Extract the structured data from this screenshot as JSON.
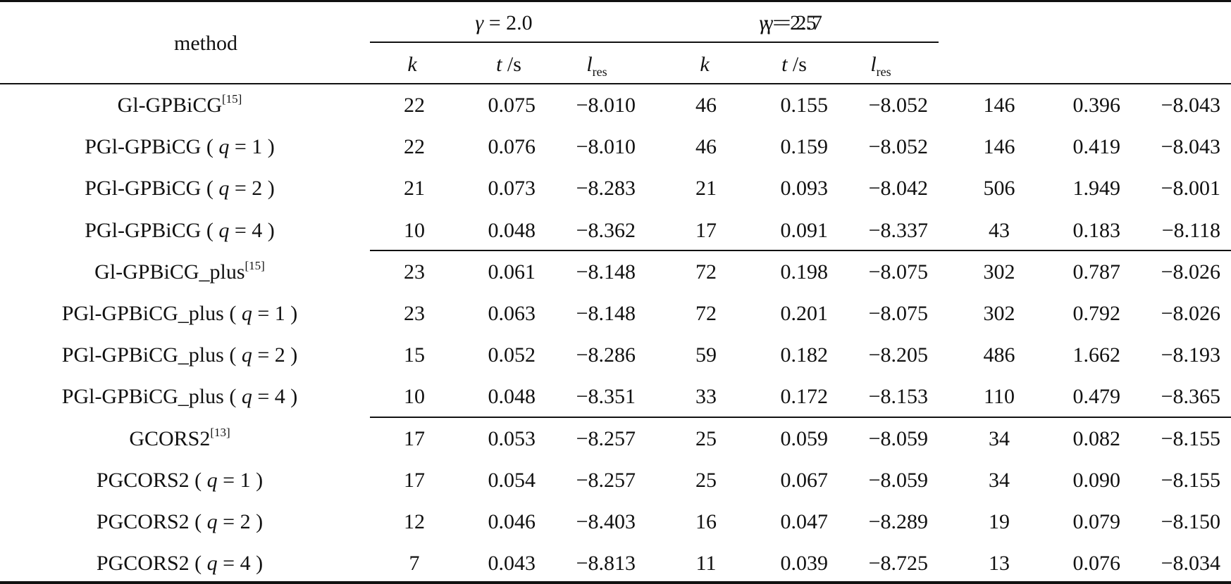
{
  "header": {
    "method_label": "method",
    "group1": {
      "label_greek": "γ",
      "label_eq": " = 2.0"
    },
    "group2": {
      "label_greek": "γ",
      "label_eq": " = 2.5",
      "overlay": "γ = 2.7"
    },
    "col_k": "k",
    "col_t": "t",
    "col_t_unit": " /s",
    "col_l": "l",
    "col_l_sub": "res"
  },
  "rows": [
    {
      "method": "Gl-GPBiCG",
      "ref": "[15]",
      "param": "",
      "g1": [
        "22",
        "0.075",
        "−8.010"
      ],
      "g2": [
        "46",
        "0.155",
        "−8.052"
      ],
      "g3": [
        "146",
        "0.396",
        "−8.043"
      ]
    },
    {
      "method": "PGl-GPBiCG",
      "ref": "",
      "param": "1",
      "g1": [
        "22",
        "0.076",
        "−8.010"
      ],
      "g2": [
        "46",
        "0.159",
        "−8.052"
      ],
      "g3": [
        "146",
        "0.419",
        "−8.043"
      ]
    },
    {
      "method": "PGl-GPBiCG",
      "ref": "",
      "param": "2",
      "g1": [
        "21",
        "0.073",
        "−8.283"
      ],
      "g2": [
        "21",
        "0.093",
        "−8.042"
      ],
      "g3": [
        "506",
        "1.949",
        "−8.001"
      ]
    },
    {
      "method": "PGl-GPBiCG",
      "ref": "",
      "param": "4",
      "g1": [
        "10",
        "0.048",
        "−8.362"
      ],
      "g2": [
        "17",
        "0.091",
        "−8.337"
      ],
      "g3": [
        "43",
        "0.183",
        "−8.118"
      ]
    },
    {
      "method": "Gl-GPBiCG_plus",
      "ref": "[15]",
      "param": "",
      "g1": [
        "23",
        "0.061",
        "−8.148"
      ],
      "g2": [
        "72",
        "0.198",
        "−8.075"
      ],
      "g3": [
        "302",
        "0.787",
        "−8.026"
      ]
    },
    {
      "method": "PGl-GPBiCG_plus",
      "ref": "",
      "param": "1",
      "g1": [
        "23",
        "0.063",
        "−8.148"
      ],
      "g2": [
        "72",
        "0.201",
        "−8.075"
      ],
      "g3": [
        "302",
        "0.792",
        "−8.026"
      ]
    },
    {
      "method": "PGl-GPBiCG_plus",
      "ref": "",
      "param": "2",
      "g1": [
        "15",
        "0.052",
        "−8.286"
      ],
      "g2": [
        "59",
        "0.182",
        "−8.205"
      ],
      "g3": [
        "486",
        "1.662",
        "−8.193"
      ]
    },
    {
      "method": "PGl-GPBiCG_plus",
      "ref": "",
      "param": "4",
      "g1": [
        "10",
        "0.048",
        "−8.351"
      ],
      "g2": [
        "33",
        "0.172",
        "−8.153"
      ],
      "g3": [
        "110",
        "0.479",
        "−8.365"
      ]
    },
    {
      "method": "GCORS2",
      "ref": "[13]",
      "param": "",
      "g1": [
        "17",
        "0.053",
        "−8.257"
      ],
      "g2": [
        "25",
        "0.059",
        "−8.059"
      ],
      "g3": [
        "34",
        "0.082",
        "−8.155"
      ]
    },
    {
      "method": "PGCORS2",
      "ref": "",
      "param": "1",
      "g1": [
        "17",
        "0.054",
        "−8.257"
      ],
      "g2": [
        "25",
        "0.067",
        "−8.059"
      ],
      "g3": [
        "34",
        "0.090",
        "−8.155"
      ]
    },
    {
      "method": "PGCORS2",
      "ref": "",
      "param": "2",
      "g1": [
        "12",
        "0.046",
        "−8.403"
      ],
      "g2": [
        "16",
        "0.047",
        "−8.289"
      ],
      "g3": [
        "19",
        "0.079",
        "−8.150"
      ]
    },
    {
      "method": "PGCORS2",
      "ref": "",
      "param": "4",
      "g1": [
        "7",
        "0.043",
        "−8.813"
      ],
      "g2": [
        "11",
        "0.039",
        "−8.725"
      ],
      "g3": [
        "13",
        "0.076",
        "−8.034"
      ]
    }
  ]
}
